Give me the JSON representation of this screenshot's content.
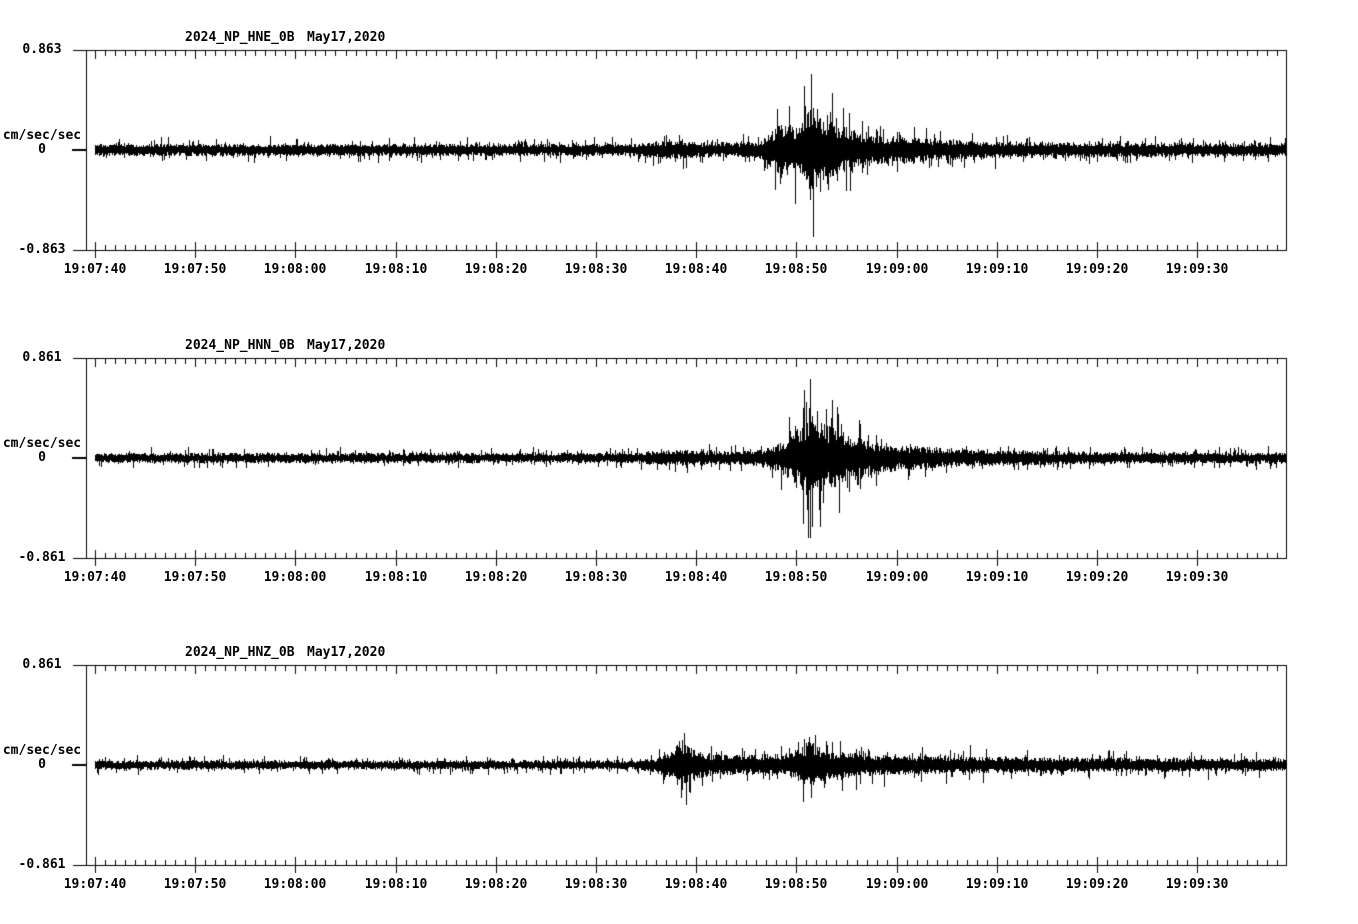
{
  "page": {
    "background_color": "#ffffff",
    "trace_color": "#000000",
    "description_visible_text_only": true
  },
  "chart_data": [
    {
      "type": "line",
      "kind": "seismogram",
      "title": "2024_NP_HNE_0B",
      "date_label": "May17,2020",
      "ylabel": "cm/sec/sec",
      "y_axis_labels": {
        "top": "0.863",
        "zero": "0",
        "bottom": "-0.863"
      },
      "ylim": [
        -0.863,
        0.863
      ],
      "x_tick_labels": [
        "19:07:40",
        "19:07:50",
        "19:08:00",
        "19:08:10",
        "19:08:20",
        "19:08:30",
        "19:08:40",
        "19:08:50",
        "19:09:00",
        "19:09:10",
        "19:09:20",
        "19:09:30"
      ],
      "x_major_tick_interval_sec": 10,
      "x_minor_tick_interval_sec": 1,
      "time_start": "19:07:39",
      "time_end": "19:09:39",
      "grid": false,
      "legend": false,
      "events": [
        {
          "time": "19:08:38",
          "peak_fraction_of_fullscale": 0.12,
          "trough_fraction_of_fullscale": -0.12
        },
        {
          "time": "19:08:51",
          "peak_fraction_of_fullscale": 0.76,
          "trough_fraction_of_fullscale": -0.87
        }
      ],
      "waveform": {
        "seed": 20240517,
        "noise_amplitude_fraction": 0.065,
        "envelope_units": "half-amplitude as fraction of fullscale vs seconds after 19:07:40",
        "envelope": [
          [
            -1,
            0.065
          ],
          [
            54,
            0.065
          ],
          [
            56.5,
            0.1
          ],
          [
            58.5,
            0.1
          ],
          [
            60,
            0.085
          ],
          [
            64,
            0.08
          ],
          [
            66.5,
            0.1
          ],
          [
            67.5,
            0.21
          ],
          [
            68.5,
            0.27
          ],
          [
            69.5,
            0.24
          ],
          [
            70.6,
            0.3
          ],
          [
            71.3,
            0.46
          ],
          [
            72,
            0.4
          ],
          [
            73,
            0.31
          ],
          [
            74.5,
            0.25
          ],
          [
            76.5,
            0.19
          ],
          [
            79,
            0.15
          ],
          [
            83,
            0.12
          ],
          [
            88,
            0.1
          ],
          [
            95,
            0.085
          ],
          [
            106,
            0.075
          ],
          [
            119,
            0.07
          ]
        ],
        "spikes": [
          [
            68.4,
            -0.34
          ],
          [
            70.9,
            0.4
          ],
          [
            71.45,
            0.76
          ],
          [
            71.62,
            -0.87
          ],
          [
            72.4,
            -0.42
          ],
          [
            73.1,
            0.35
          ]
        ]
      }
    },
    {
      "type": "line",
      "kind": "seismogram",
      "title": "2024_NP_HNN_0B",
      "date_label": "May17,2020",
      "ylabel": "cm/sec/sec",
      "y_axis_labels": {
        "top": "0.861",
        "zero": "0",
        "bottom": "-0.861"
      },
      "ylim": [
        -0.861,
        0.861
      ],
      "x_tick_labels": [
        "19:07:40",
        "19:07:50",
        "19:08:00",
        "19:08:10",
        "19:08:20",
        "19:08:30",
        "19:08:40",
        "19:08:50",
        "19:09:00",
        "19:09:10",
        "19:09:20",
        "19:09:30"
      ],
      "x_major_tick_interval_sec": 10,
      "x_minor_tick_interval_sec": 1,
      "time_start": "19:07:39",
      "time_end": "19:09:39",
      "grid": false,
      "legend": false,
      "events": [
        {
          "time": "19:08:38",
          "peak_fraction_of_fullscale": 0.1,
          "trough_fraction_of_fullscale": -0.1
        },
        {
          "time": "19:08:51",
          "peak_fraction_of_fullscale": 0.79,
          "trough_fraction_of_fullscale": -0.69
        }
      ],
      "waveform": {
        "seed": 1337,
        "noise_amplitude_fraction": 0.055,
        "envelope_units": "half-amplitude as fraction of fullscale vs seconds after 19:07:40",
        "envelope": [
          [
            -1,
            0.055
          ],
          [
            54,
            0.055
          ],
          [
            56.5,
            0.085
          ],
          [
            58.5,
            0.09
          ],
          [
            60.5,
            0.075
          ],
          [
            64,
            0.07
          ],
          [
            66.5,
            0.09
          ],
          [
            68,
            0.15
          ],
          [
            69.3,
            0.23
          ],
          [
            70.4,
            0.34
          ],
          [
            71.3,
            0.5
          ],
          [
            72.2,
            0.44
          ],
          [
            73.2,
            0.34
          ],
          [
            74.8,
            0.27
          ],
          [
            77,
            0.19
          ],
          [
            80,
            0.14
          ],
          [
            84,
            0.11
          ],
          [
            89,
            0.088
          ],
          [
            96,
            0.072
          ],
          [
            106,
            0.062
          ],
          [
            119,
            0.058
          ]
        ],
        "spikes": [
          [
            70.7,
            0.5
          ],
          [
            71.1,
            -0.52
          ],
          [
            71.32,
            0.79
          ],
          [
            71.58,
            -0.69
          ],
          [
            72.1,
            0.47
          ],
          [
            72.7,
            -0.45
          ]
        ]
      }
    },
    {
      "type": "line",
      "kind": "seismogram",
      "title": "2024_NP_HNZ_0B",
      "date_label": "May17,2020",
      "ylabel": "cm/sec/sec",
      "y_axis_labels": {
        "top": "0.861",
        "zero": "0",
        "bottom": "-0.861"
      },
      "ylim": [
        -0.861,
        0.861
      ],
      "x_tick_labels": [
        "19:07:40",
        "19:07:50",
        "19:08:00",
        "19:08:10",
        "19:08:20",
        "19:08:30",
        "19:08:40",
        "19:08:50",
        "19:09:00",
        "19:09:10",
        "19:09:20",
        "19:09:30"
      ],
      "x_major_tick_interval_sec": 10,
      "x_minor_tick_interval_sec": 1,
      "time_start": "19:07:39",
      "time_end": "19:09:39",
      "grid": false,
      "legend": false,
      "events": [
        {
          "time": "19:08:39",
          "peak_fraction_of_fullscale": 0.32,
          "trough_fraction_of_fullscale": -0.4
        },
        {
          "time": "19:08:51",
          "peak_fraction_of_fullscale": 0.28,
          "trough_fraction_of_fullscale": -0.33
        }
      ],
      "waveform": {
        "seed": 777,
        "noise_amplitude_fraction": 0.05,
        "envelope_units": "half-amplitude as fraction of fullscale vs seconds after 19:07:40",
        "envelope": [
          [
            -1,
            0.05
          ],
          [
            54,
            0.05
          ],
          [
            56,
            0.08
          ],
          [
            57.3,
            0.15
          ],
          [
            58.6,
            0.28
          ],
          [
            59.5,
            0.19
          ],
          [
            60.8,
            0.13
          ],
          [
            62.5,
            0.115
          ],
          [
            65,
            0.11
          ],
          [
            67.5,
            0.12
          ],
          [
            69.5,
            0.135
          ],
          [
            70.6,
            0.2
          ],
          [
            71.3,
            0.26
          ],
          [
            72.2,
            0.21
          ],
          [
            73.2,
            0.15
          ],
          [
            75.5,
            0.13
          ],
          [
            78.5,
            0.115
          ],
          [
            83,
            0.1
          ],
          [
            89,
            0.09
          ],
          [
            96,
            0.082
          ],
          [
            107,
            0.073
          ],
          [
            119,
            0.068
          ]
        ],
        "spikes": [
          [
            58.3,
            0.24
          ],
          [
            58.78,
            0.32
          ],
          [
            58.98,
            -0.4
          ],
          [
            59.4,
            -0.28
          ],
          [
            70.95,
            0.22
          ],
          [
            71.28,
            0.28
          ],
          [
            71.5,
            -0.33
          ]
        ]
      }
    }
  ]
}
